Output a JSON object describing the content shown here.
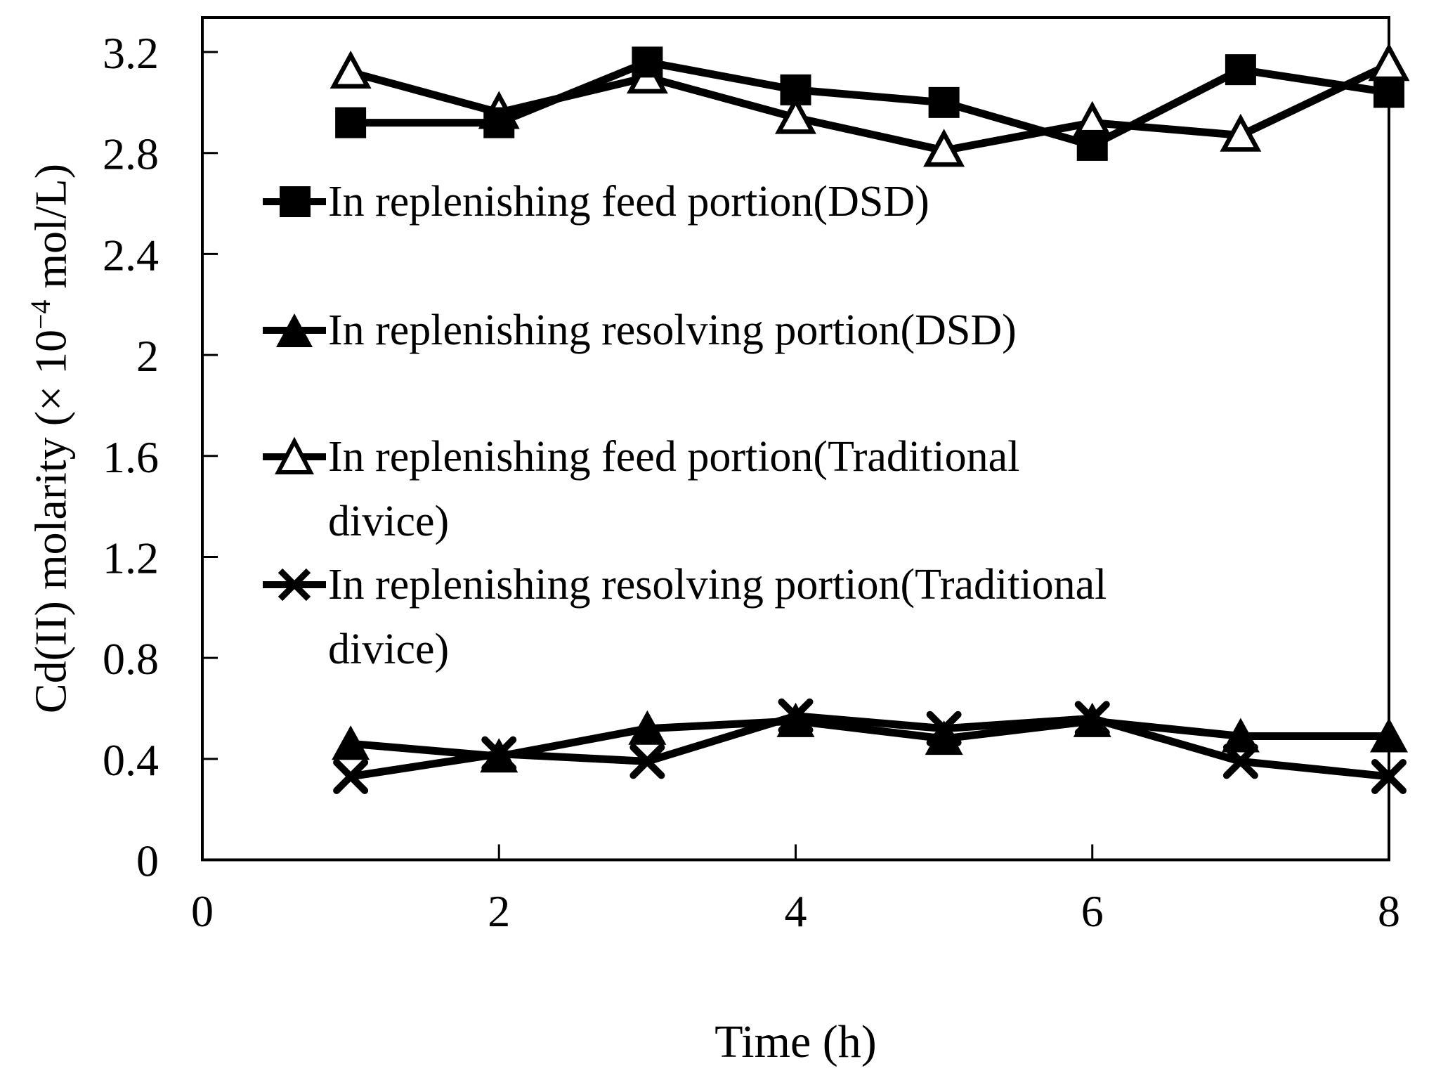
{
  "figure": {
    "x_axis_title": "Time (h)",
    "y_axis_title": {
      "prefix": "Cd(II) molarity (× 10",
      "sup": "−4",
      "suffix": " mol/L)"
    }
  },
  "chart_data": {
    "type": "line",
    "x": [
      1,
      2,
      3,
      4,
      5,
      6,
      7,
      8
    ],
    "xlabel": "Time (h)",
    "ylabel": "Cd(II) molarity (× 10^−4 mol/L)",
    "xlim": [
      0,
      8
    ],
    "ylim": [
      0,
      3.2
    ],
    "x_ticks": [
      "0",
      "2",
      "4",
      "6",
      "8"
    ],
    "x_tick_values": [
      0,
      2,
      4,
      6,
      8
    ],
    "y_ticks": [
      "0",
      "0.4",
      "0.8",
      "1.2",
      "1.6",
      "2",
      "2.4",
      "2.8",
      "3.2"
    ],
    "y_tick_values": [
      0,
      0.4,
      0.8,
      1.2,
      1.6,
      2,
      2.4,
      2.8,
      3.2
    ],
    "grid": false,
    "legend_position": "inside upper-left, no border",
    "series": [
      {
        "name": "In replenishing feed portion(DSD)",
        "marker": "filled-square",
        "values": [
          2.92,
          2.92,
          3.16,
          3.05,
          3.0,
          2.83,
          3.13,
          3.04
        ]
      },
      {
        "name": "In replenishing resolving portion(DSD)",
        "marker": "filled-triangle",
        "values": [
          0.46,
          0.41,
          0.52,
          0.55,
          0.48,
          0.55,
          0.49,
          0.49
        ]
      },
      {
        "name": "In replenishing feed portion(Traditional divice)",
        "marker": "open-triangle",
        "values": [
          3.12,
          2.96,
          3.1,
          2.94,
          2.81,
          2.92,
          2.87,
          3.15
        ]
      },
      {
        "name": "In replenishing resolving portion(Traditional divice)",
        "marker": "x-cross",
        "values": [
          0.33,
          0.42,
          0.39,
          0.57,
          0.52,
          0.56,
          0.39,
          0.33
        ]
      }
    ]
  },
  "legend": {
    "entries": [
      {
        "marker": "filled-square",
        "lines": [
          "In replenishing feed portion(DSD)"
        ]
      },
      {
        "marker": "filled-triangle",
        "lines": [
          "In replenishing resolving portion(DSD)"
        ]
      },
      {
        "marker": "open-triangle",
        "lines": [
          "In replenishing feed portion(Traditional",
          "divice)"
        ]
      },
      {
        "marker": "x-cross",
        "lines": [
          "In replenishing resolving portion(Traditional",
          "divice)"
        ]
      }
    ]
  },
  "colors": {
    "ink": "#000000",
    "background": "#ffffff"
  }
}
